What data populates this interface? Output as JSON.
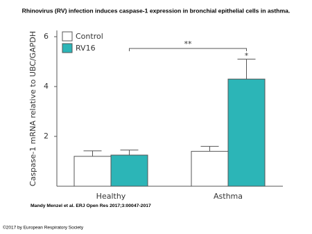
{
  "chart_data": {
    "type": "bar",
    "title": "Rhinovirus (RV) infection induces caspase-1 expression in bronchial epithelial cells in asthma.",
    "y_label": "Caspase-1 mRNA relative to UBC/GAPDH",
    "categories": [
      "Healthy",
      "Asthma"
    ],
    "series": [
      {
        "name": "Control",
        "color": "#ffffff",
        "values": [
          1.2,
          1.4
        ],
        "errors": [
          0.22,
          0.2
        ]
      },
      {
        "name": "RV16",
        "color": "#2cb5b7",
        "values": [
          1.25,
          4.3
        ],
        "errors": [
          0.2,
          0.8
        ]
      }
    ],
    "ylim": [
      0,
      6
    ],
    "yticks": [
      2,
      4,
      6
    ],
    "annotations": [
      "**",
      "*"
    ],
    "citation": "Mandy Menzel et al. ERJ Open Res 2017;3:00047-2017",
    "copyright": "©2017 by European Respiratory Society"
  }
}
